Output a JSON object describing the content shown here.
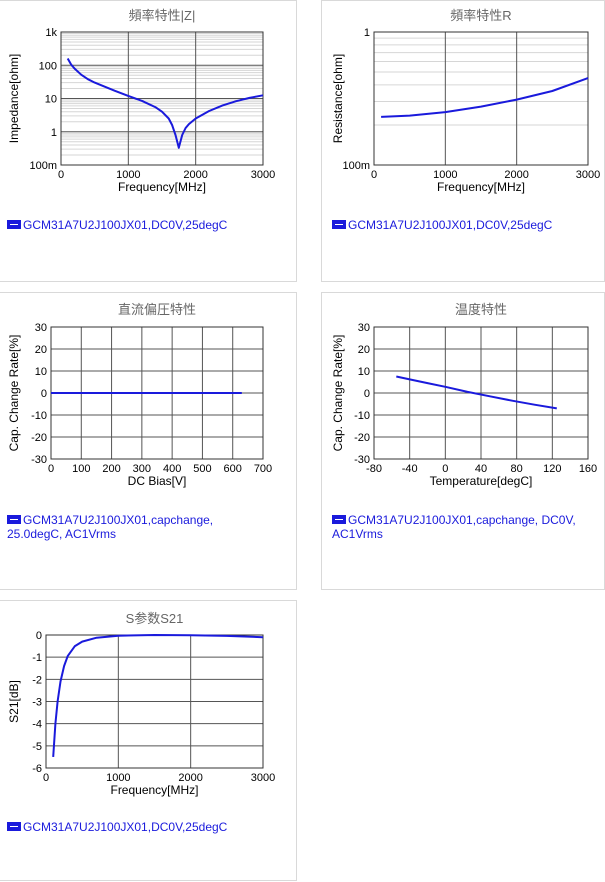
{
  "accent": "#1a1adc",
  "chart_data": [
    {
      "type": "line",
      "title": "頻率特性|Z|",
      "xlabel": "Frequency[MHz]",
      "ylabel": "Impedance[ohm]",
      "xlim": [
        0,
        3000
      ],
      "ylim": [
        0.1,
        1000
      ],
      "yscale": "log",
      "xticks": [
        "0",
        "1000",
        "2000",
        "3000"
      ],
      "yticks": [
        "100m",
        "1",
        "10",
        "100",
        "1k"
      ],
      "grid": true,
      "legend": "GCM31A7U2J100JX01,DC0V,25degC",
      "series": [
        {
          "name": "GCM31A7U2J100JX01,DC0V,25degC",
          "x": [
            100,
            150,
            200,
            300,
            400,
            500,
            600,
            800,
            1000,
            1200,
            1400,
            1500,
            1600,
            1650,
            1700,
            1750,
            1800,
            1850,
            1900,
            2000,
            2200,
            2400,
            2600,
            2800,
            3000
          ],
          "y": [
            160,
            105,
            80,
            52,
            38,
            30,
            25,
            17,
            12,
            8.5,
            5.5,
            4.0,
            2.5,
            1.6,
            0.8,
            0.33,
            0.8,
            1.3,
            1.7,
            2.5,
            4.2,
            6.2,
            8.3,
            10.4,
            12.5
          ]
        }
      ]
    },
    {
      "type": "line",
      "title": "頻率特性R",
      "xlabel": "Frequency[MHz]",
      "ylabel": "Resistance[ohm]",
      "xlim": [
        0,
        3000
      ],
      "ylim": [
        0.1,
        1
      ],
      "yscale": "log",
      "xticks": [
        "0",
        "1000",
        "2000",
        "3000"
      ],
      "yticks": [
        "100m",
        "1"
      ],
      "grid": true,
      "legend": "GCM31A7U2J100JX01,DC0V,25degC",
      "series": [
        {
          "name": "GCM31A7U2J100JX01,DC0V,25degC",
          "x": [
            100,
            500,
            1000,
            1500,
            2000,
            2500,
            3000
          ],
          "y": [
            0.23,
            0.235,
            0.25,
            0.275,
            0.31,
            0.36,
            0.45
          ]
        }
      ]
    },
    {
      "type": "line",
      "title": "直流偏圧特性",
      "xlabel": "DC Bias[V]",
      "ylabel": "Cap. Change Rate[%]",
      "xlim": [
        0,
        700
      ],
      "ylim": [
        -30,
        30
      ],
      "xticks": [
        "0",
        "100",
        "200",
        "300",
        "400",
        "500",
        "600",
        "700"
      ],
      "yticks": [
        "-30",
        "-20",
        "-10",
        "0",
        "10",
        "20",
        "30"
      ],
      "grid": true,
      "legend": "GCM31A7U2J100JX01,capchange, 25.0degC, AC1Vrms",
      "series": [
        {
          "name": "GCM31A7U2J100JX01,capchange, 25.0degC, AC1Vrms",
          "x": [
            0,
            100,
            200,
            300,
            400,
            500,
            630
          ],
          "y": [
            0,
            0,
            0,
            0,
            0,
            0,
            0
          ]
        }
      ]
    },
    {
      "type": "line",
      "title": "温度特性",
      "xlabel": "Temperature[degC]",
      "ylabel": "Cap. Change Rate[%]",
      "xlim": [
        -80,
        160
      ],
      "ylim": [
        -30,
        30
      ],
      "xticks": [
        "-80",
        "-40",
        "0",
        "40",
        "80",
        "120",
        "160"
      ],
      "yticks": [
        "-30",
        "-20",
        "-10",
        "0",
        "10",
        "20",
        "30"
      ],
      "grid": true,
      "legend": "GCM31A7U2J100JX01,capchange, DC0V, AC1Vrms",
      "series": [
        {
          "name": "GCM31A7U2J100JX01,capchange, DC0V, AC1Vrms",
          "x": [
            -55,
            -40,
            -20,
            0,
            25,
            50,
            75,
            100,
            125
          ],
          "y": [
            7.5,
            6.2,
            4.5,
            2.8,
            0.5,
            -1.5,
            -3.5,
            -5.3,
            -7.0
          ]
        }
      ]
    },
    {
      "type": "line",
      "title": "S参数S21",
      "xlabel": "Frequency[MHz]",
      "ylabel": "S21[dB]",
      "xlim": [
        0,
        3000
      ],
      "ylim": [
        -6,
        0
      ],
      "xticks": [
        "0",
        "1000",
        "2000",
        "3000"
      ],
      "yticks": [
        "-6",
        "-5",
        "-4",
        "-3",
        "-2",
        "-1",
        "0"
      ],
      "grid": true,
      "legend": "GCM31A7U2J100JX01,DC0V,25degC",
      "series": [
        {
          "name": "GCM31A7U2J100JX01,DC0V,25degC",
          "x": [
            100,
            130,
            160,
            200,
            250,
            300,
            400,
            500,
            700,
            1000,
            1500,
            2000,
            2500,
            3000
          ],
          "y": [
            -5.5,
            -4.0,
            -3.0,
            -2.1,
            -1.4,
            -0.95,
            -0.5,
            -0.3,
            -0.12,
            -0.03,
            0,
            -0.01,
            -0.04,
            -0.1
          ]
        }
      ]
    }
  ]
}
